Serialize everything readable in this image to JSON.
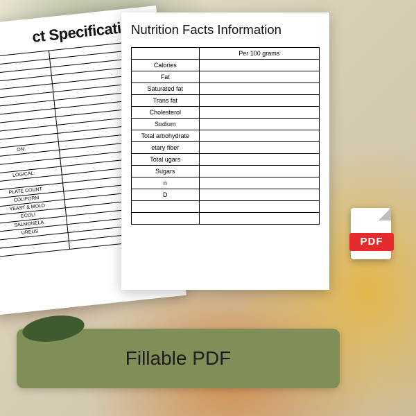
{
  "colors": {
    "paper": "#ffffff",
    "border": "#000000",
    "pdf_red": "#e52b2b",
    "banner_bg": "#808f58",
    "banner_deco": "#3f5a2e",
    "text": "#111111"
  },
  "spec_page": {
    "title": "ct Specifications",
    "rows": [
      "",
      "",
      "",
      "",
      "",
      "",
      "",
      "",
      "",
      "",
      "",
      "ON:",
      "",
      "",
      "LOGICAL:",
      "",
      "PLATE COUNT",
      "COLIFORM",
      "YEAST & MOLD",
      "ECOLI",
      "SALMONELA",
      "UREUS",
      "",
      ""
    ]
  },
  "nutr_page": {
    "title": "Nutrition Facts Information",
    "header_col2": "Per 100 grams",
    "rows": [
      "Calories",
      "Fat",
      "Saturated fat",
      "Trans fat",
      "Cholesterol",
      "Sodium",
      "Total arbohydrate",
      "etary fiber",
      "Total ugars",
      "Sugars",
      "n",
      "D"
    ],
    "trailing_blank_rows": 2
  },
  "pdf_icon": {
    "label": "PDF"
  },
  "banner": {
    "text": "Fillable PDF"
  }
}
